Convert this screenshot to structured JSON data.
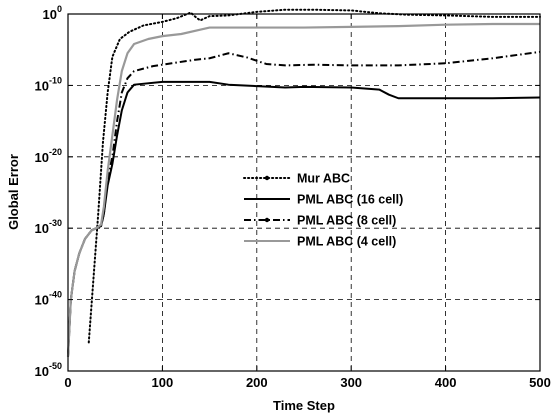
{
  "chart_data": {
    "type": "line",
    "title": "",
    "xlabel": "Time Step",
    "ylabel": "Global Error",
    "xlim": [
      0,
      500
    ],
    "ylim": [
      1e-50,
      1
    ],
    "yscale": "log",
    "grid": true,
    "legend_position": "center",
    "x_ticks": [
      {
        "value": 0,
        "label": "0"
      },
      {
        "value": 100,
        "label": "100"
      },
      {
        "value": 200,
        "label": "200"
      },
      {
        "value": 300,
        "label": "300"
      },
      {
        "value": 400,
        "label": "400"
      },
      {
        "value": 500,
        "label": "500"
      }
    ],
    "y_ticks": [
      {
        "exp": 0,
        "base": "10",
        "sup": "0"
      },
      {
        "exp": -10,
        "base": "10",
        "sup": "-10"
      },
      {
        "exp": -20,
        "base": "10",
        "sup": "-20"
      },
      {
        "exp": -30,
        "base": "10",
        "sup": "-30"
      },
      {
        "exp": -40,
        "base": "10",
        "sup": "-40"
      },
      {
        "exp": -50,
        "base": "10",
        "sup": "-50"
      }
    ],
    "series": [
      {
        "name": "Mur ABC",
        "style": "dotted",
        "color": "#000000",
        "points": [
          [
            22,
            -46
          ],
          [
            27,
            -37
          ],
          [
            32,
            -28
          ],
          [
            37,
            -18
          ],
          [
            42,
            -11
          ],
          [
            47,
            -6
          ],
          [
            55,
            -3.5
          ],
          [
            65,
            -2.5
          ],
          [
            80,
            -1.6
          ],
          [
            100,
            -1.1
          ],
          [
            115,
            -0.6
          ],
          [
            130,
            0.2
          ],
          [
            135,
            -0.4
          ],
          [
            140,
            -0.9
          ],
          [
            150,
            -0.3
          ],
          [
            170,
            -0.2
          ],
          [
            200,
            0.3
          ],
          [
            230,
            0.6
          ],
          [
            260,
            0.6
          ],
          [
            300,
            0.5
          ],
          [
            330,
            0.1
          ],
          [
            360,
            -0.1
          ],
          [
            400,
            -0.2
          ],
          [
            450,
            -0.4
          ],
          [
            500,
            -0.4
          ]
        ]
      },
      {
        "name": "PML ABC (16 cell)",
        "style": "solid",
        "color": "#000000",
        "points": [
          [
            0,
            -48
          ],
          [
            3,
            -40
          ],
          [
            7,
            -36
          ],
          [
            12,
            -33.5
          ],
          [
            18,
            -31.5
          ],
          [
            25,
            -30.3
          ],
          [
            30,
            -30
          ],
          [
            35,
            -29.7
          ],
          [
            38,
            -28
          ],
          [
            42,
            -24
          ],
          [
            47,
            -21
          ],
          [
            52,
            -17
          ],
          [
            57,
            -13.5
          ],
          [
            63,
            -11
          ],
          [
            70,
            -9.9
          ],
          [
            100,
            -9.5
          ],
          [
            150,
            -9.5
          ],
          [
            170,
            -9.9
          ],
          [
            200,
            -10.1
          ],
          [
            230,
            -10.3
          ],
          [
            250,
            -10.2
          ],
          [
            300,
            -10.3
          ],
          [
            330,
            -10.6
          ],
          [
            340,
            -11.3
          ],
          [
            350,
            -11.8
          ],
          [
            400,
            -11.8
          ],
          [
            450,
            -11.8
          ],
          [
            500,
            -11.7
          ]
        ]
      },
      {
        "name": "PML ABC (8 cell)",
        "style": "dashdot",
        "color": "#000000",
        "points": [
          [
            0,
            -48
          ],
          [
            3,
            -40
          ],
          [
            7,
            -36
          ],
          [
            12,
            -33.5
          ],
          [
            18,
            -31.5
          ],
          [
            25,
            -30.3
          ],
          [
            30,
            -30
          ],
          [
            35,
            -29.7
          ],
          [
            38,
            -28
          ],
          [
            42,
            -23
          ],
          [
            47,
            -20
          ],
          [
            52,
            -15
          ],
          [
            57,
            -11
          ],
          [
            63,
            -9
          ],
          [
            70,
            -8
          ],
          [
            90,
            -7.3
          ],
          [
            110,
            -6.9
          ],
          [
            135,
            -6.4
          ],
          [
            150,
            -6.2
          ],
          [
            170,
            -5.5
          ],
          [
            190,
            -6.1
          ],
          [
            210,
            -7
          ],
          [
            230,
            -7.2
          ],
          [
            260,
            -7.1
          ],
          [
            300,
            -7.2
          ],
          [
            350,
            -7.2
          ],
          [
            400,
            -6.9
          ],
          [
            450,
            -6.2
          ],
          [
            500,
            -5.3
          ]
        ]
      },
      {
        "name": "PML ABC (4 cell)",
        "style": "solid",
        "color": "#999999",
        "points": [
          [
            0,
            -48
          ],
          [
            3,
            -40
          ],
          [
            7,
            -36
          ],
          [
            12,
            -33.5
          ],
          [
            18,
            -31.5
          ],
          [
            25,
            -30.3
          ],
          [
            30,
            -30
          ],
          [
            35,
            -29.5
          ],
          [
            38,
            -27
          ],
          [
            42,
            -22
          ],
          [
            47,
            -17
          ],
          [
            52,
            -12
          ],
          [
            57,
            -8
          ],
          [
            63,
            -5.5
          ],
          [
            70,
            -4.2
          ],
          [
            85,
            -3.5
          ],
          [
            100,
            -3.1
          ],
          [
            120,
            -2.8
          ],
          [
            140,
            -2.2
          ],
          [
            150,
            -1.9
          ],
          [
            200,
            -1.9
          ],
          [
            250,
            -1.9
          ],
          [
            300,
            -1.8
          ],
          [
            350,
            -1.7
          ],
          [
            400,
            -1.5
          ],
          [
            450,
            -1.4
          ],
          [
            500,
            -1.4
          ]
        ]
      }
    ]
  }
}
